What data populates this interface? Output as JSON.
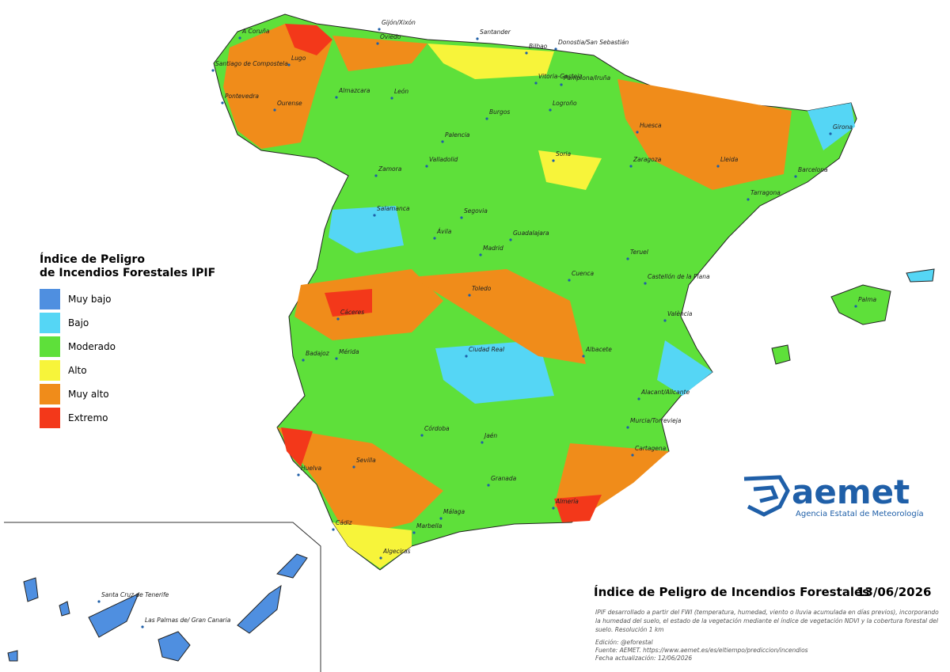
{
  "legend": {
    "title_line1": "Índice de Peligro",
    "title_line2": "de Incendios Forestales IPIF",
    "items": [
      {
        "label": "Muy bajo",
        "color": "#4f8fe0"
      },
      {
        "label": "Bajo",
        "color": "#55d6f5"
      },
      {
        "label": "Moderado",
        "color": "#5ee03a"
      },
      {
        "label": "Alto",
        "color": "#f7f43a"
      },
      {
        "label": "Muy alto",
        "color": "#f08c1a"
      },
      {
        "label": "Extremo",
        "color": "#f3381a"
      }
    ]
  },
  "cities": [
    "A Coruña",
    "Gijón/Xixón",
    "Oviedo",
    "Santander",
    "Bilbao",
    "Donostia/San Sebastián",
    "Lugo",
    "Santiago de Compostela",
    "Vitoria-Gasteiz",
    "Pamplona/Iruña",
    "Pontevedra",
    "Ourense",
    "Almazcara",
    "León",
    "Logroño",
    "Burgos",
    "Huesca",
    "Girona",
    "Palencia",
    "Soria",
    "Lleida",
    "Zamora",
    "Valladolid",
    "Zaragoza",
    "Barcelona",
    "Tarragona",
    "Salamanca",
    "Segovia",
    "Ávila",
    "Guadalajara",
    "Madrid",
    "Teruel",
    "Castellón de la Plana",
    "Cuenca",
    "Palma",
    "Toledo",
    "Cáceres",
    "València",
    "Badajoz",
    "Mérida",
    "Ciudad Real",
    "Albacete",
    "Alacant/Alicante",
    "Córdoba",
    "Jaén",
    "Murcia/Torrevieja",
    "Cartagena",
    "Sevilla",
    "Huelva",
    "Granada",
    "Almería",
    "Málaga",
    "Marbella",
    "Cádiz",
    "Algeciras",
    "Santa Cruz de Tenerife",
    "Las Palmas de/ Gran Canaria"
  ],
  "logo": {
    "name": "aemet",
    "subtitle": "Agencia Estatal de Meteorología"
  },
  "footer": {
    "title": "Índice de Peligro de Incendios Forestales",
    "date": "13/06/2026",
    "description": [
      "IPIF desarrollado a partir del FWI (temperatura, humedad, viento o lluvia acumulada en días previos), incorporando",
      "la humedad del suelo, el estado de la vegetación mediante el índice de vegetación NDVI y la cobertura forestal del",
      "suelo. Resolución 1 km"
    ],
    "edition": "Edición: @eforestal",
    "source": "Fuente: AEMET. https://www.aemet.es/es/eltiempo/prediccion/incendios",
    "updated": "Fecha actualización: 12/06/2026"
  }
}
